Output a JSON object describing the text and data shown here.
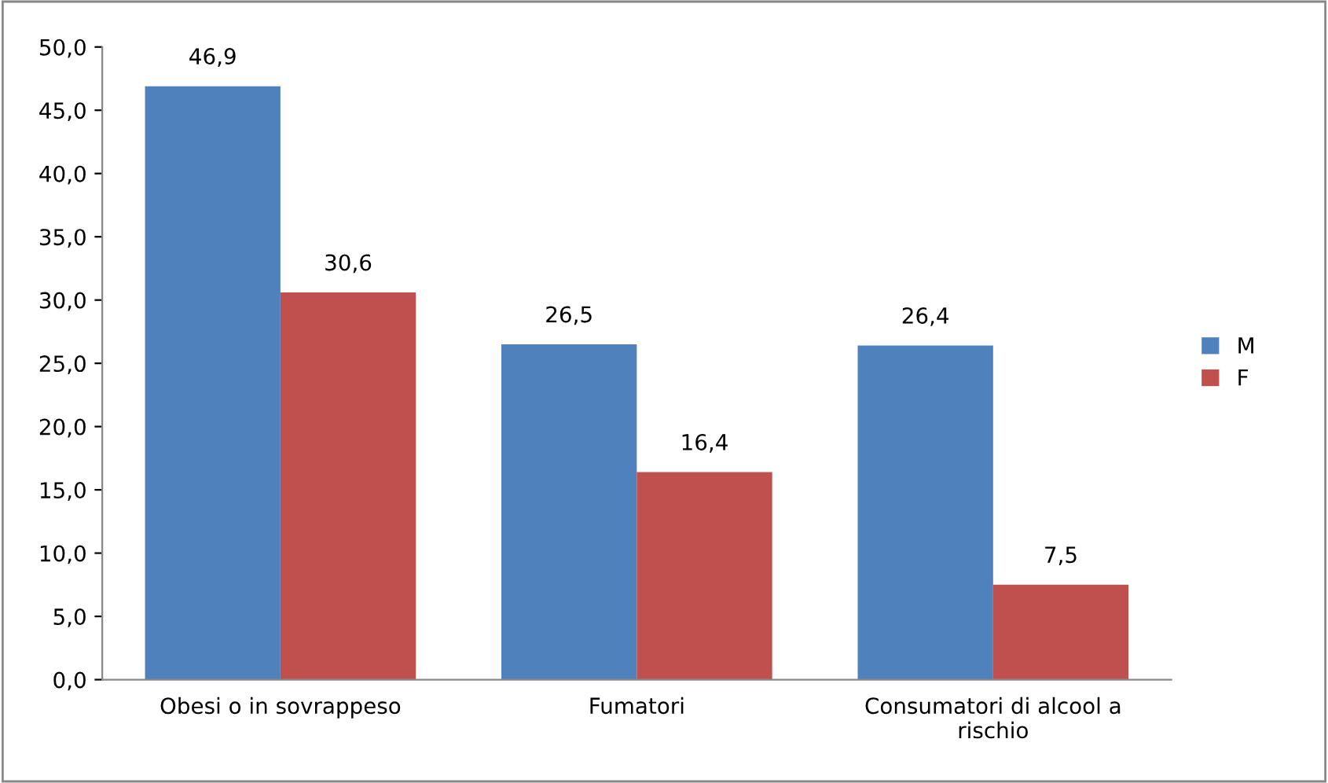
{
  "chart_data": {
    "type": "bar",
    "categories": [
      "Obesi o in sovrappeso",
      "Fumatori",
      "Consumatori di alcool a rischio"
    ],
    "series": [
      {
        "name": "M",
        "color": "#4f81bd",
        "values": [
          46.9,
          26.5,
          26.4
        ],
        "value_labels": [
          "46,9",
          "26,5",
          "26,4"
        ]
      },
      {
        "name": "F",
        "color": "#c0504d",
        "values": [
          30.6,
          16.4,
          7.5
        ],
        "value_labels": [
          "30,6",
          "16,4",
          "7,5"
        ]
      }
    ],
    "ylim": [
      0,
      50
    ],
    "yticks": [
      {
        "value": 0,
        "label": "0,0"
      },
      {
        "value": 5,
        "label": "5,0"
      },
      {
        "value": 10,
        "label": "10,0"
      },
      {
        "value": 15,
        "label": "15,0"
      },
      {
        "value": 20,
        "label": "20,0"
      },
      {
        "value": 25,
        "label": "25,0"
      },
      {
        "value": 30,
        "label": "30,0"
      },
      {
        "value": 35,
        "label": "35,0"
      },
      {
        "value": 40,
        "label": "40,0"
      },
      {
        "value": 45,
        "label": "45,0"
      },
      {
        "value": 50,
        "label": "50,0"
      }
    ],
    "grid": false,
    "legend": "right"
  }
}
